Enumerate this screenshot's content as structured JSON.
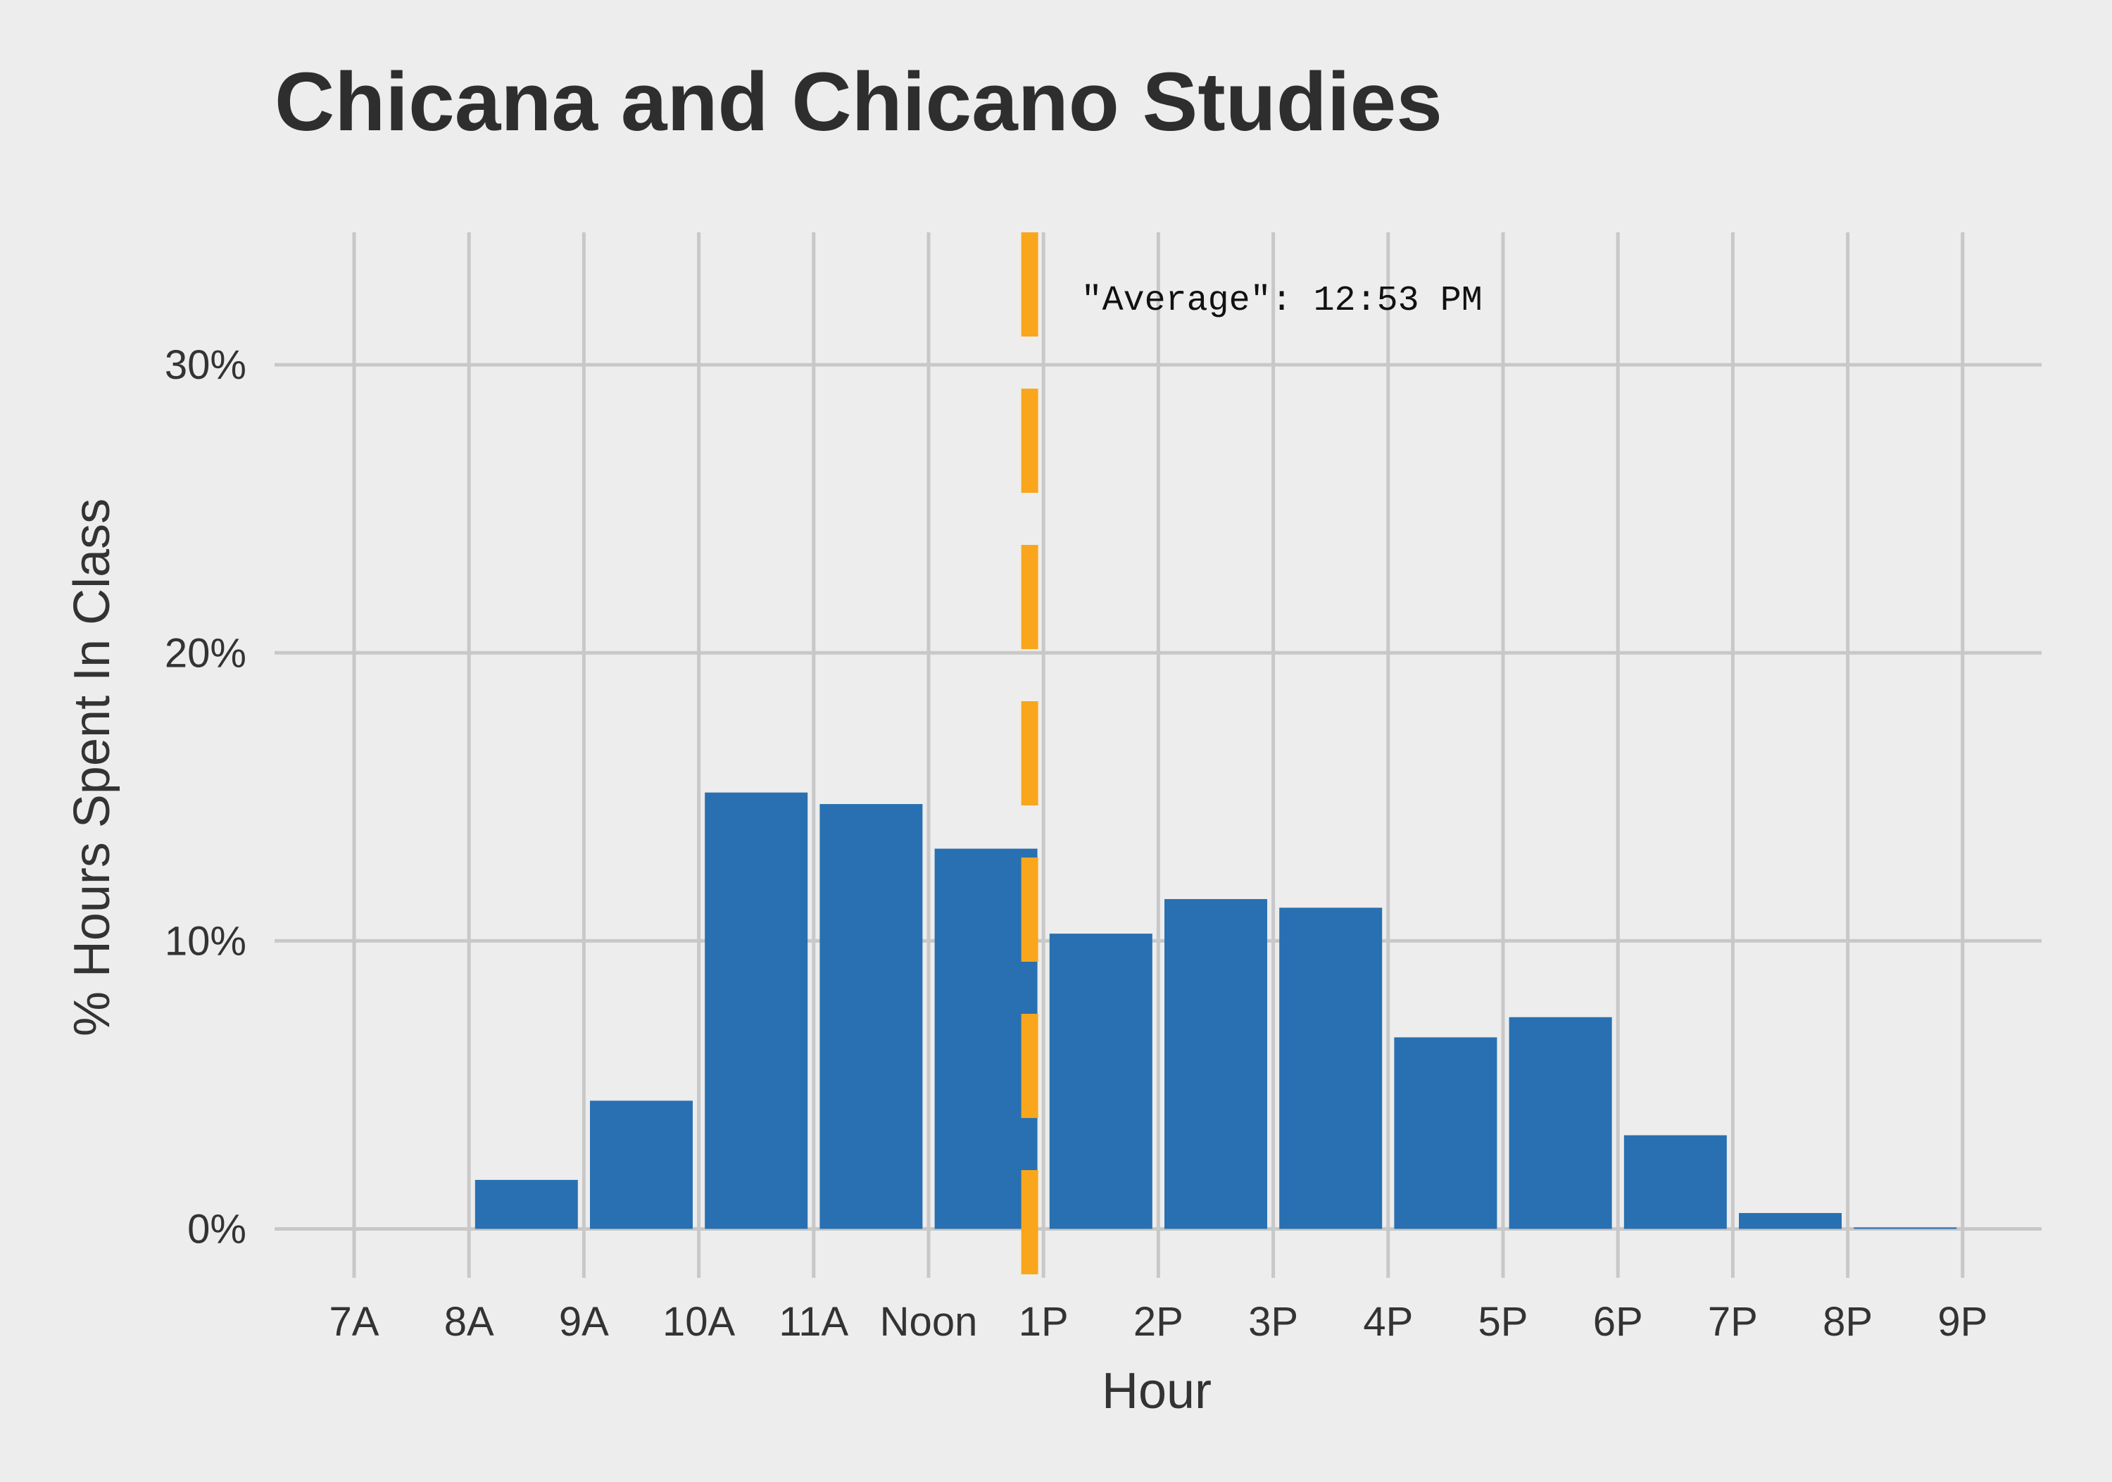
{
  "chart_data": {
    "type": "bar",
    "title": "Chicana and Chicano Studies",
    "xlabel": "Hour",
    "ylabel": "% Hours Spent In Class",
    "categories": [
      "7A",
      "8A",
      "9A",
      "10A",
      "11A",
      "Noon",
      "1P",
      "2P",
      "3P",
      "4P",
      "5P",
      "6P",
      "7P",
      "8P",
      "9P"
    ],
    "values": [
      0,
      1.7,
      4.45,
      15.15,
      14.75,
      13.2,
      10.25,
      11.45,
      11.15,
      6.65,
      7.35,
      3.25,
      0.55,
      0.05,
      0
    ],
    "ylim": [
      -1.7,
      34.6
    ],
    "yticks": [
      0,
      10,
      20,
      30
    ],
    "ytick_labels": [
      "0%",
      "10%",
      "20%",
      "30%"
    ],
    "grid": true,
    "bar_color": "#2870b1",
    "average_line": {
      "x_hour": 12.88,
      "label": "\"Average\": 12:53 PM",
      "color": "#f9a61c"
    }
  }
}
